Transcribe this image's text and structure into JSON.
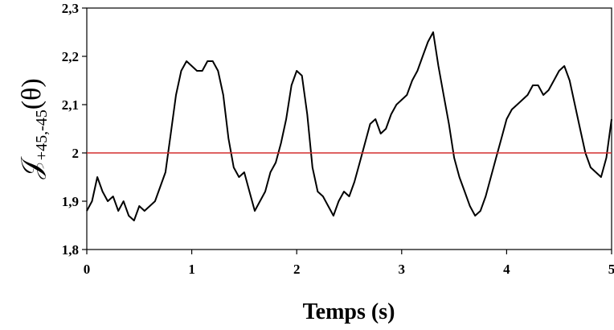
{
  "chart_data": {
    "type": "line",
    "title": "",
    "xlabel": "Temps (s)",
    "ylabel": {
      "main": "𝒥",
      "subscript": "+45,-45",
      "suffix": "(θ)"
    },
    "xlim": [
      0,
      5
    ],
    "ylim": [
      1.8,
      2.3
    ],
    "x_ticks": [
      0,
      1,
      2,
      3,
      4,
      5
    ],
    "x_tick_labels": [
      "0",
      "1",
      "2",
      "3",
      "4",
      "5"
    ],
    "y_ticks": [
      1.8,
      1.9,
      2.0,
      2.1,
      2.2,
      2.3
    ],
    "y_tick_labels": [
      "1,8",
      "1,9",
      "2",
      "2,1",
      "2,2",
      "2,3"
    ],
    "grid": false,
    "legend": "none",
    "series": [
      {
        "color": "#000000",
        "x": [
          0,
          0.05,
          0.1,
          0.15,
          0.2,
          0.25,
          0.3,
          0.35,
          0.4,
          0.45,
          0.5,
          0.55,
          0.6,
          0.65,
          0.7,
          0.75,
          0.8,
          0.85,
          0.9,
          0.95,
          1.0,
          1.05,
          1.1,
          1.15,
          1.2,
          1.25,
          1.3,
          1.35,
          1.4,
          1.45,
          1.5,
          1.55,
          1.6,
          1.65,
          1.7,
          1.75,
          1.8,
          1.85,
          1.9,
          1.95,
          2.0,
          2.05,
          2.1,
          2.15,
          2.2,
          2.25,
          2.3,
          2.35,
          2.4,
          2.45,
          2.5,
          2.55,
          2.6,
          2.65,
          2.7,
          2.75,
          2.8,
          2.85,
          2.9,
          2.95,
          3.0,
          3.05,
          3.1,
          3.15,
          3.2,
          3.25,
          3.3,
          3.35,
          3.4,
          3.45,
          3.5,
          3.55,
          3.6,
          3.65,
          3.7,
          3.75,
          3.8,
          3.85,
          3.9,
          3.95,
          4.0,
          4.05,
          4.1,
          4.15,
          4.2,
          4.25,
          4.3,
          4.35,
          4.4,
          4.45,
          4.5,
          4.55,
          4.6,
          4.65,
          4.7,
          4.75,
          4.8,
          4.85,
          4.9,
          4.95,
          5.0
        ],
        "y": [
          1.88,
          1.9,
          1.95,
          1.92,
          1.9,
          1.91,
          1.88,
          1.9,
          1.87,
          1.86,
          1.89,
          1.88,
          1.89,
          1.9,
          1.93,
          1.96,
          2.04,
          2.12,
          2.17,
          2.19,
          2.18,
          2.17,
          2.17,
          2.19,
          2.19,
          2.17,
          2.12,
          2.03,
          1.97,
          1.95,
          1.96,
          1.92,
          1.88,
          1.9,
          1.92,
          1.96,
          1.98,
          2.02,
          2.07,
          2.14,
          2.17,
          2.16,
          2.08,
          1.97,
          1.92,
          1.91,
          1.89,
          1.87,
          1.9,
          1.92,
          1.91,
          1.94,
          1.98,
          2.02,
          2.06,
          2.07,
          2.04,
          2.05,
          2.08,
          2.1,
          2.11,
          2.12,
          2.15,
          2.17,
          2.2,
          2.23,
          2.25,
          2.18,
          2.12,
          2.06,
          1.99,
          1.95,
          1.92,
          1.89,
          1.87,
          1.88,
          1.91,
          1.95,
          1.99,
          2.03,
          2.07,
          2.09,
          2.1,
          2.11,
          2.12,
          2.14,
          2.14,
          2.12,
          2.13,
          2.15,
          2.17,
          2.18,
          2.15,
          2.1,
          2.05,
          2.0,
          1.97,
          1.96,
          1.95,
          1.99,
          2.07
        ]
      },
      {
        "color": "#d32f2f",
        "x": [
          0,
          5
        ],
        "y": [
          2.0,
          2.0
        ]
      }
    ]
  }
}
